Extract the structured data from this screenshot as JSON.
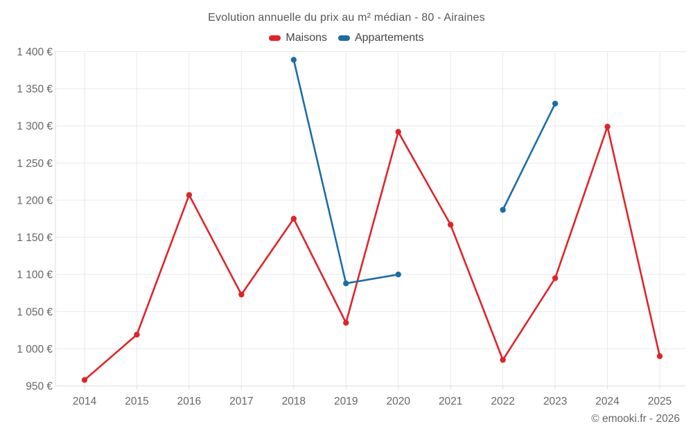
{
  "title": "Evolution annuelle du prix au m² médian - 80 - Airaines",
  "watermark": "© emooki.fr - 2026",
  "legend": {
    "items": [
      {
        "label": "Maisons",
        "color": "#e02328"
      },
      {
        "label": "Appartements",
        "color": "#1a6da6"
      }
    ]
  },
  "colors": {
    "maisons": "#e02328",
    "appartements": "#1a6da6",
    "grid": "#e9e9e9",
    "axis": "#dddddd",
    "tick_label": "#666666",
    "title_text": "#555555",
    "legend_text": "#444444",
    "background": "#ffffff"
  },
  "chart_data": {
    "type": "line",
    "title": "Evolution annuelle du prix au m² médian - 80 - Airaines",
    "categories": [
      "2014",
      "2015",
      "2016",
      "2017",
      "2018",
      "2019",
      "2020",
      "2021",
      "2022",
      "2023",
      "2024",
      "2025"
    ],
    "series": [
      {
        "name": "Maisons",
        "color": "#e02328",
        "values": [
          958,
          1019,
          1207,
          1073,
          1175,
          1035,
          1292,
          1167,
          985,
          1095,
          1299,
          990
        ]
      },
      {
        "name": "Appartements",
        "color": "#1a6da6",
        "values": [
          null,
          null,
          null,
          null,
          1389,
          1088,
          1100,
          null,
          1187,
          1330,
          null,
          null
        ]
      }
    ],
    "ylim": [
      950,
      1400
    ],
    "y_ticks": [
      950,
      1000,
      1050,
      1100,
      1150,
      1200,
      1250,
      1300,
      1350,
      1400
    ],
    "y_tick_labels": [
      "950 €",
      "1 000 €",
      "1 050 €",
      "1 100 €",
      "1 150 €",
      "1 200 €",
      "1 250 €",
      "1 300 €",
      "1 350 €",
      "1 400 €"
    ],
    "xlabel": "",
    "ylabel": "",
    "grid": true,
    "legend_position": "top"
  }
}
